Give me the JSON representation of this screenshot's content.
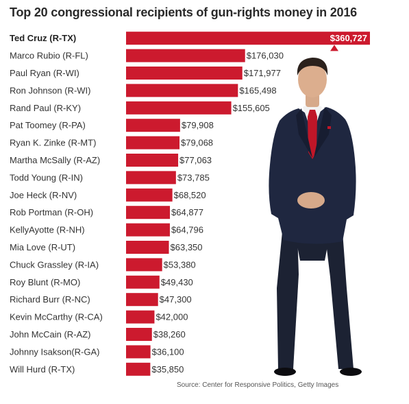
{
  "chart_data": {
    "type": "bar",
    "orientation": "horizontal",
    "title": "Top 20 congressional recipients of gun-rights money in 2016",
    "source": "Source: Center for Responsive Politics, Getty Images",
    "bar_color": "#cc1a2e",
    "categories": [
      "Ted Cruz (R-TX)",
      "Marco Rubio (R-FL)",
      "Paul Ryan (R-WI)",
      "Ron Johnson (R-WI)",
      "Rand Paul (R-KY)",
      "Pat Toomey (R-PA)",
      "Ryan K. Zinke (R-MT)",
      "Martha McSally (R-AZ)",
      "Todd Young (R-IN)",
      "Joe Heck (R-NV)",
      "Rob Portman (R-OH)",
      "KellyAyotte (R-NH)",
      "Mia Love (R-UT)",
      "Chuck Grassley (R-IA)",
      "Roy Blunt (R-MO)",
      "Richard Burr (R-NC)",
      "Kevin McCarthy (R-CA)",
      "John McCain (R-AZ)",
      "Johnny  Isakson(R-GA)",
      "Will Hurd (R-TX)"
    ],
    "values": [
      360727,
      176030,
      171977,
      165498,
      155605,
      79908,
      79068,
      77063,
      73785,
      68520,
      64877,
      64796,
      63350,
      53380,
      49430,
      47300,
      42000,
      38260,
      36100,
      35850
    ],
    "value_labels": [
      "$360,727",
      "$176,030",
      "$171,977",
      "$165,498",
      "$155,605",
      "$79,908",
      "$79,068",
      "$77,063",
      "$73,785",
      "$68,520",
      "$64,877",
      "$64,796",
      "$63,350",
      "$53,380",
      "$49,430",
      "$47,300",
      "$42,000",
      "$38,260",
      "$36,100",
      "$35,850"
    ],
    "xlim": [
      0,
      360727
    ],
    "grid": false,
    "legend": "none"
  }
}
